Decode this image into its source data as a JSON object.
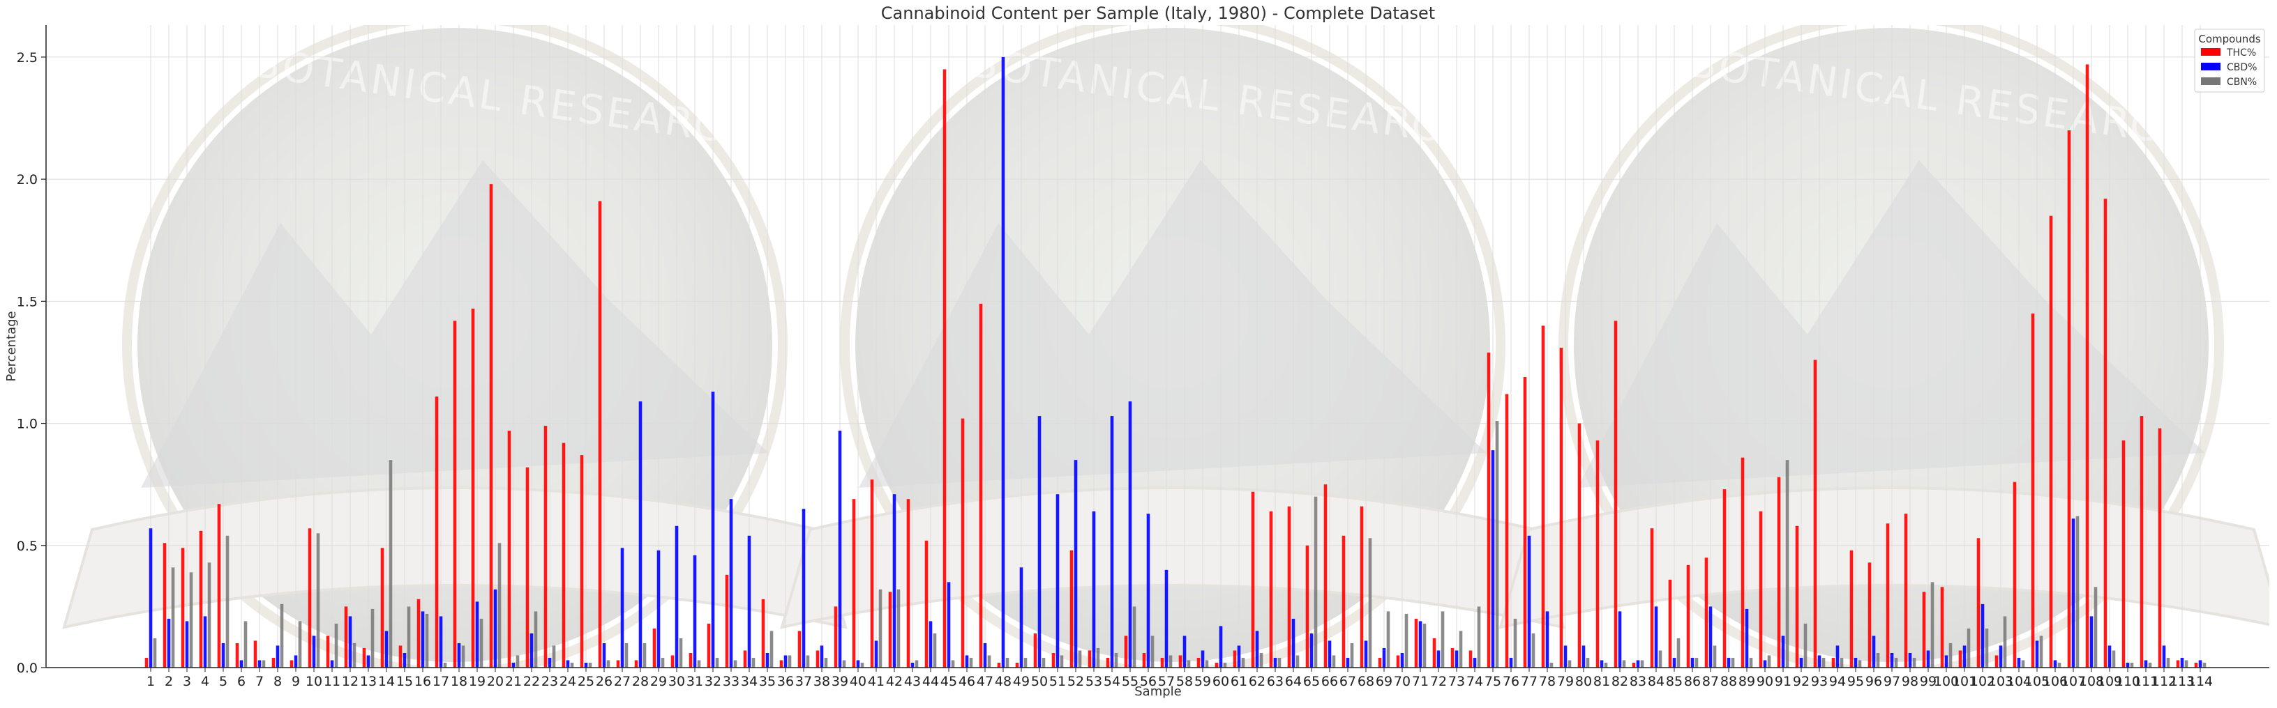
{
  "chart_data": {
    "type": "bar",
    "title": "Cannabinoid Content per Sample (Italy, 1980) - Complete Dataset",
    "xlabel": "Sample",
    "ylabel": "Percentage",
    "ylim": [
      0,
      2.6
    ],
    "yticks": [
      "0.0",
      "0.5",
      "1.0",
      "1.5",
      "2.0",
      "2.5"
    ],
    "categories": [
      "1",
      "2",
      "3",
      "4",
      "5",
      "6",
      "7",
      "8",
      "9",
      "10",
      "11",
      "12",
      "13",
      "14",
      "15",
      "16",
      "17",
      "18",
      "19",
      "20",
      "21",
      "22",
      "23",
      "24",
      "25",
      "26",
      "27",
      "28",
      "29",
      "30",
      "31",
      "32",
      "33",
      "34",
      "35",
      "36",
      "37",
      "38",
      "39",
      "40",
      "41",
      "42",
      "43",
      "44",
      "45",
      "46",
      "47",
      "48",
      "49",
      "50",
      "51",
      "52",
      "53",
      "54",
      "55",
      "56",
      "57",
      "58",
      "59",
      "60",
      "61",
      "62",
      "63",
      "64",
      "65",
      "66",
      "67",
      "68",
      "69",
      "70",
      "71",
      "72",
      "73",
      "74",
      "75",
      "76",
      "77",
      "78",
      "79",
      "80",
      "81",
      "82",
      "83",
      "84",
      "85",
      "86",
      "87",
      "88",
      "89",
      "90",
      "91",
      "92",
      "93",
      "94",
      "95",
      "96",
      "97",
      "98",
      "99",
      "100",
      "101",
      "102",
      "103",
      "104",
      "105",
      "106",
      "107",
      "108",
      "109",
      "110",
      "111",
      "112",
      "113",
      "114"
    ],
    "series": [
      {
        "name": "THC%",
        "color": "#ff0000",
        "values": [
          0.04,
          0.51,
          0.49,
          0.56,
          0.67,
          0.1,
          0.11,
          0.04,
          0.03,
          0.57,
          0.13,
          0.25,
          0.08,
          0.49,
          0.09,
          0.28,
          1.11,
          1.42,
          1.47,
          1.98,
          0.97,
          0.82,
          0.99,
          0.92,
          0.87,
          1.91,
          0.03,
          0.03,
          0.16,
          0.05,
          0.06,
          0.18,
          0.38,
          0.07,
          0.28,
          0.03,
          0.15,
          0.07,
          0.25,
          0.69,
          0.77,
          0.31,
          0.69,
          0.52,
          2.45,
          1.02,
          1.49,
          0.02,
          0.02,
          0.14,
          0.06,
          0.48,
          0.07,
          0.04,
          0.13,
          0.06,
          0.04,
          0.05,
          0.04,
          0.02,
          0.07,
          0.72,
          0.64,
          0.66,
          0.5,
          0.75,
          0.54,
          0.66,
          0.04,
          0.05,
          0.2,
          0.12,
          0.08,
          0.07,
          1.29,
          1.12,
          1.19,
          1.4,
          1.31,
          1.0,
          0.93,
          1.42,
          0.02,
          0.57,
          0.36,
          0.42,
          0.45,
          0.73,
          0.86,
          0.64,
          0.78,
          0.58,
          1.26,
          0.04,
          0.48,
          0.43,
          0.59,
          0.63,
          0.31,
          0.33,
          0.07,
          0.53,
          0.05,
          0.76,
          1.45,
          1.85,
          2.2,
          2.47,
          1.92,
          0.93,
          1.03,
          0.98,
          0.03,
          0.02
        ]
      },
      {
        "name": "CBD%",
        "color": "#0000ff",
        "values": [
          0.57,
          0.2,
          0.19,
          0.21,
          0.1,
          0.03,
          0.03,
          0.09,
          0.05,
          0.13,
          0.03,
          0.21,
          0.05,
          0.15,
          0.06,
          0.23,
          0.21,
          0.1,
          0.27,
          0.32,
          0.02,
          0.14,
          0.04,
          0.03,
          0.02,
          0.1,
          0.49,
          1.09,
          0.48,
          0.58,
          0.46,
          1.13,
          0.69,
          0.54,
          0.06,
          0.05,
          0.65,
          0.09,
          0.97,
          0.03,
          0.11,
          0.71,
          0.02,
          0.19,
          0.35,
          0.05,
          0.1,
          2.5,
          0.41,
          1.03,
          0.71,
          0.85,
          0.64,
          1.03,
          1.09,
          0.63,
          0.4,
          0.13,
          0.07,
          0.17,
          0.09,
          0.15,
          0.04,
          0.2,
          0.14,
          0.11,
          0.04,
          0.11,
          0.08,
          0.06,
          0.19,
          0.07,
          0.07,
          0.04,
          0.89,
          0.04,
          0.54,
          0.23,
          0.09,
          0.09,
          0.03,
          0.23,
          0.03,
          0.25,
          0.04,
          0.04,
          0.25,
          0.04,
          0.24,
          0.03,
          0.13,
          0.04,
          0.05,
          0.09,
          0.04,
          0.13,
          0.06,
          0.06,
          0.07,
          0.05,
          0.09,
          0.26,
          0.09,
          0.04,
          0.11,
          0.03,
          0.61,
          0.21,
          0.09,
          0.02,
          0.03,
          0.09,
          0.04,
          0.03
        ]
      },
      {
        "name": "CBN%",
        "color": "#777777",
        "values": [
          0.12,
          0.41,
          0.39,
          0.43,
          0.54,
          0.19,
          0.03,
          0.26,
          0.19,
          0.55,
          0.18,
          0.1,
          0.24,
          0.85,
          0.25,
          0.22,
          0.02,
          0.09,
          0.2,
          0.51,
          0.05,
          0.23,
          0.09,
          0.02,
          0.02,
          0.03,
          0.1,
          0.1,
          0.04,
          0.12,
          0.03,
          0.04,
          0.03,
          0.04,
          0.15,
          0.05,
          0.05,
          0.04,
          0.03,
          0.02,
          0.32,
          0.32,
          0.03,
          0.14,
          0.03,
          0.04,
          0.05,
          0.04,
          0.04,
          0.04,
          0.05,
          0.07,
          0.08,
          0.06,
          0.25,
          0.13,
          0.05,
          0.03,
          0.03,
          0.02,
          0.04,
          0.06,
          0.04,
          0.05,
          0.7,
          0.05,
          0.1,
          0.53,
          0.23,
          0.22,
          0.18,
          0.23,
          0.15,
          0.25,
          1.01,
          0.2,
          0.14,
          0.02,
          0.03,
          0.04,
          0.02,
          0.03,
          0.03,
          0.07,
          0.12,
          0.04,
          0.09,
          0.04,
          0.04,
          0.05,
          0.85,
          0.18,
          0.04,
          0.04,
          0.03,
          0.06,
          0.04,
          0.04,
          0.35,
          0.1,
          0.16,
          0.16,
          0.21,
          0.03,
          0.13,
          0.02,
          0.62,
          0.33,
          0.07,
          0.02,
          0.02,
          0.04,
          0.03,
          0.02
        ]
      }
    ],
    "legend": {
      "title": "Compounds",
      "location": "top-right"
    },
    "grid": true
  },
  "watermark": {
    "text": "ETHNOBOTANICAL RESEARCHER"
  }
}
